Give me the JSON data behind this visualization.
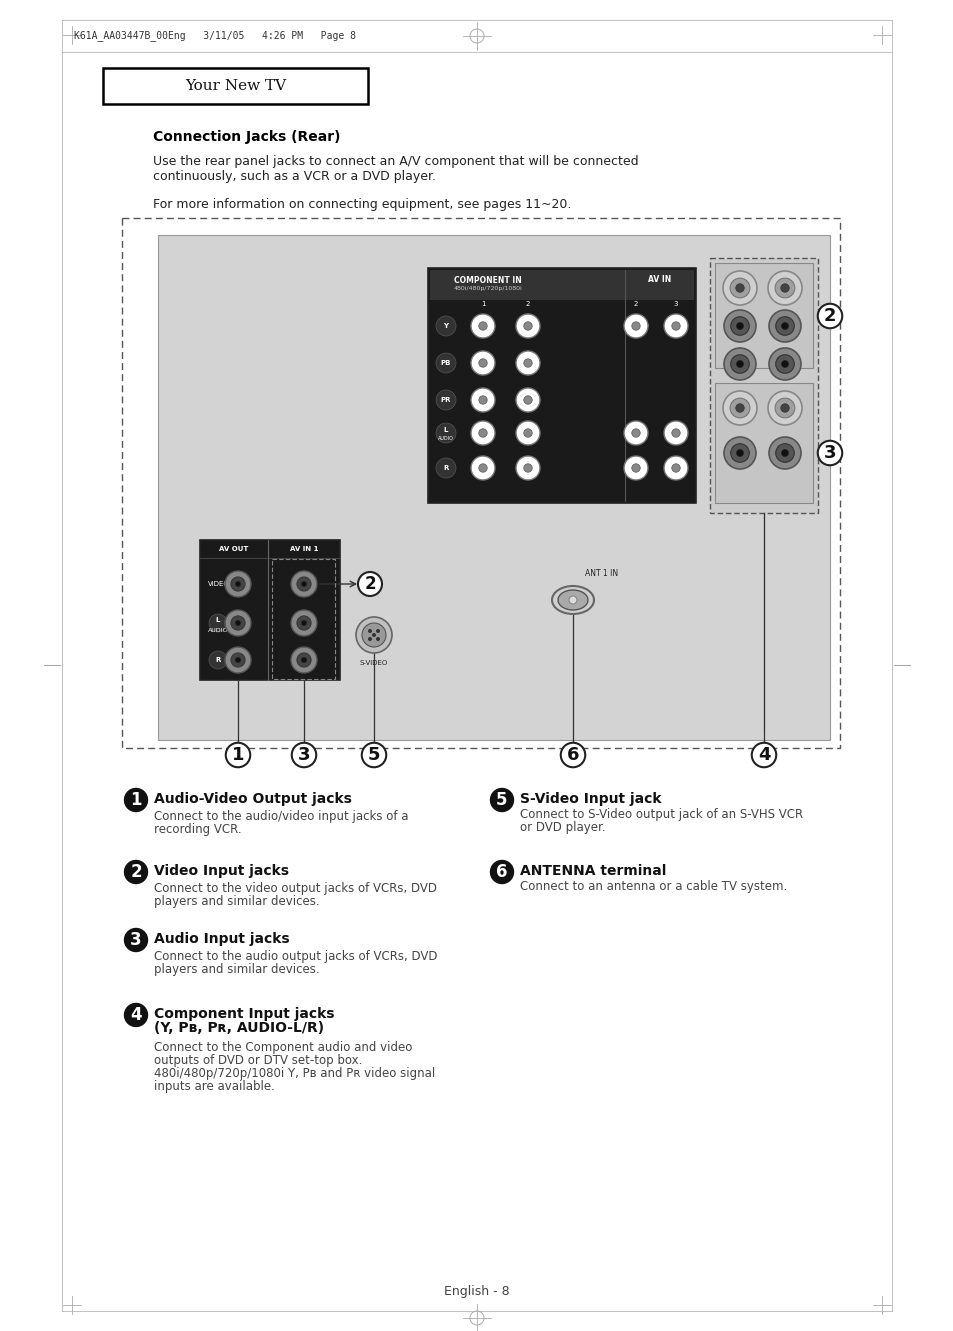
{
  "page_header": "K61A_AA03447B_00Eng   3/11/05   4:26 PM   Page 8",
  "section_title": "Your New TV",
  "main_heading": "Connection Jacks (Rear)",
  "intro_text1": "Use the rear panel jacks to connect an A/V component that will be connected",
  "intro_text2": "continuously, such as a VCR or a DVD player.",
  "info_text": "For more information on connecting equipment, see pages 11~20.",
  "bg_color": "#ffffff",
  "items_left": [
    {
      "num": "1",
      "title": "Audio-Video Output jacks",
      "desc": "Connect to the audio/video input jacks of a\nrecording VCR."
    },
    {
      "num": "2",
      "title": "Video Input jacks",
      "desc": "Connect to the video output jacks of VCRs, DVD\nplayers and similar devices."
    },
    {
      "num": "3",
      "title": "Audio Input jacks",
      "desc": "Connect to the audio output jacks of VCRs, DVD\nplayers and similar devices."
    },
    {
      "num": "4",
      "title_line1": "Component Input jacks",
      "title_line2": "(Y, Pʙ, Pʀ, AUDIO-L/R)",
      "desc": "Connect to the Component audio and video\noutputs of DVD or DTV set-top box.\n480i/480p/720p/1080i Y, Pʙ and Pʀ video signal\ninputs are available."
    }
  ],
  "items_right": [
    {
      "num": "5",
      "title": "S-Video Input jack",
      "desc": "Connect to S-Video output jack of an S-VHS VCR\nor DVD player."
    },
    {
      "num": "6",
      "title": "ANTENNA terminal",
      "desc": "Connect to an antenna or a cable TV system."
    }
  ],
  "footer": "English - 8"
}
